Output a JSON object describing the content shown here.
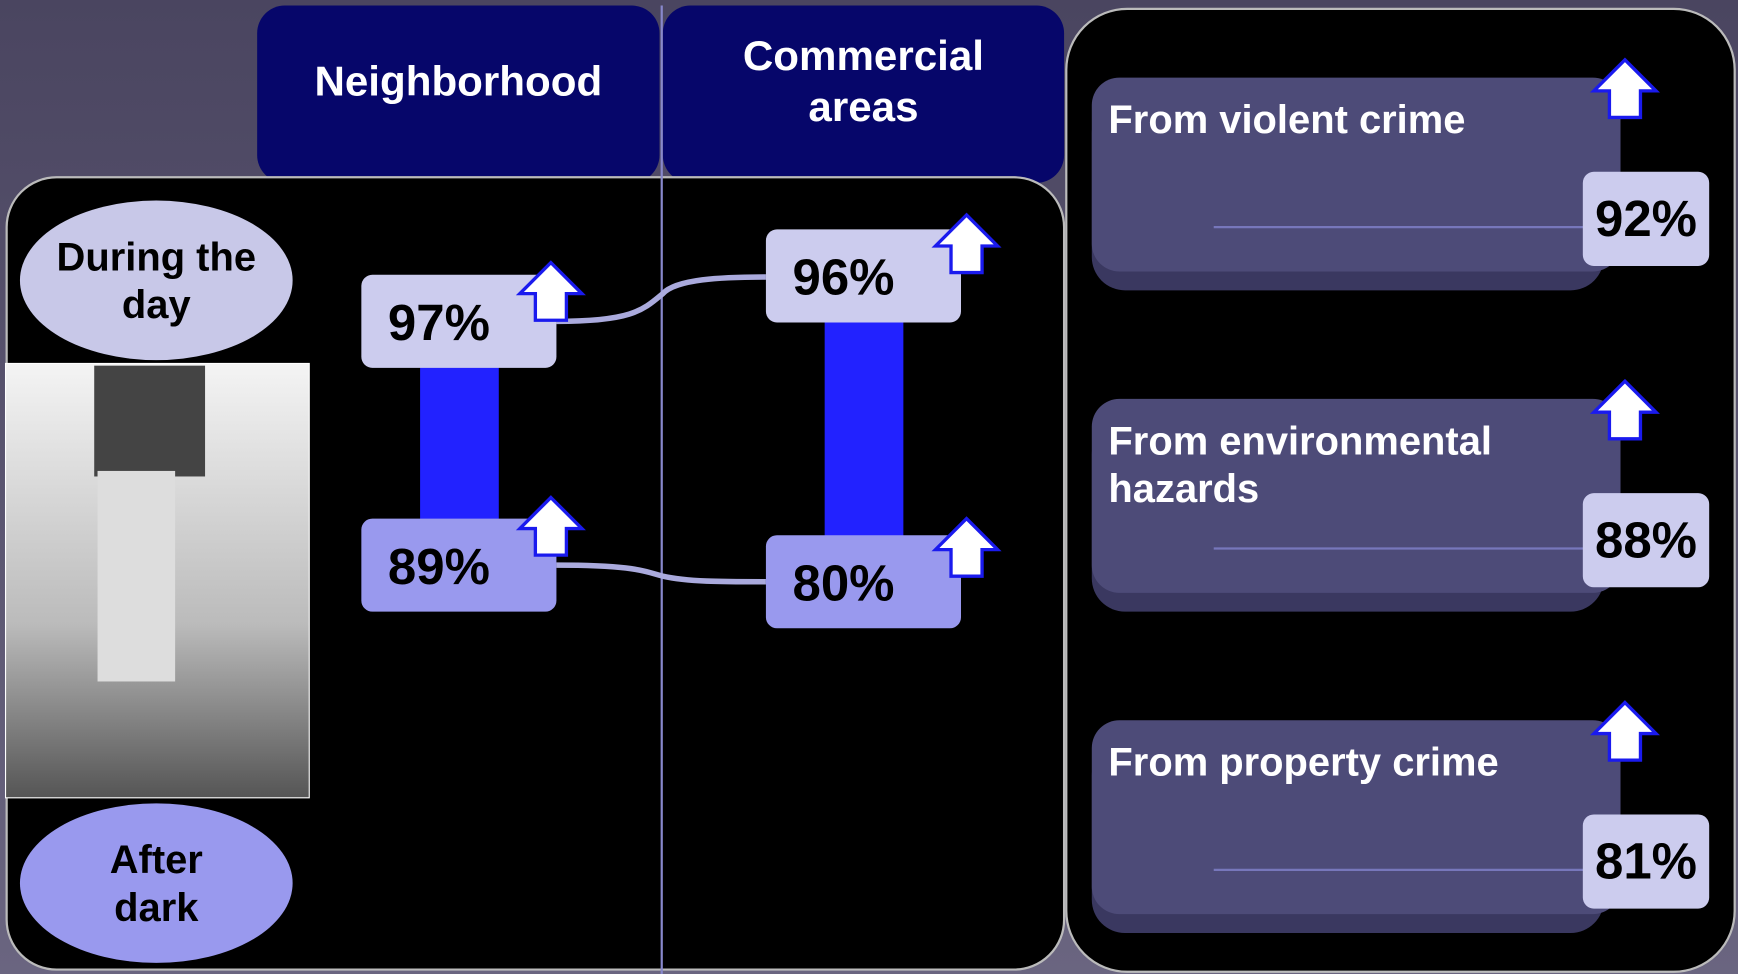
{
  "columns": [
    "Neighborhood",
    "Commercial areas"
  ],
  "rows": [
    "During the day",
    "After dark"
  ],
  "values": [
    [
      "97%",
      "96%"
    ],
    [
      "89%",
      "80%"
    ]
  ],
  "categories": [
    {
      "label": "From violent crime",
      "value": "92%"
    },
    {
      "label": "From environmental hazards",
      "value": "88%"
    },
    {
      "label": "From property crime",
      "value": "81%"
    }
  ]
}
